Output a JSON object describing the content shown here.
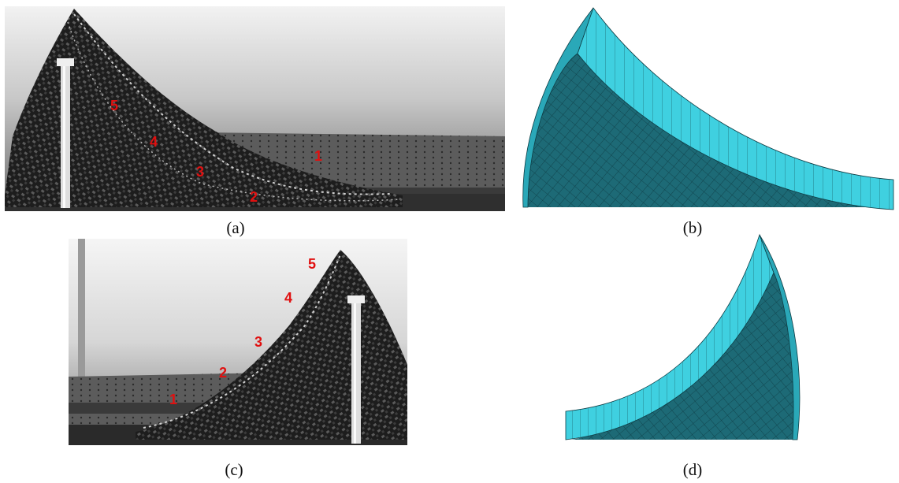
{
  "panels": [
    {
      "id": "a",
      "caption": "(a)",
      "kind": "photo",
      "markers": [
        "1",
        "2",
        "3",
        "4",
        "5"
      ]
    },
    {
      "id": "b",
      "caption": "(b)",
      "kind": "fem-render"
    },
    {
      "id": "c",
      "caption": "(c)",
      "kind": "photo",
      "markers": [
        "1",
        "2",
        "3",
        "4",
        "5"
      ]
    },
    {
      "id": "d",
      "caption": "(d)",
      "kind": "fem-render"
    }
  ],
  "colors": {
    "marker_text": "#e01010",
    "mesh_face": "#3fd0e0",
    "mesh_shadow": "#155a66",
    "photo_bg": "#bcbcbc",
    "fabric": "#2a2a2a"
  }
}
